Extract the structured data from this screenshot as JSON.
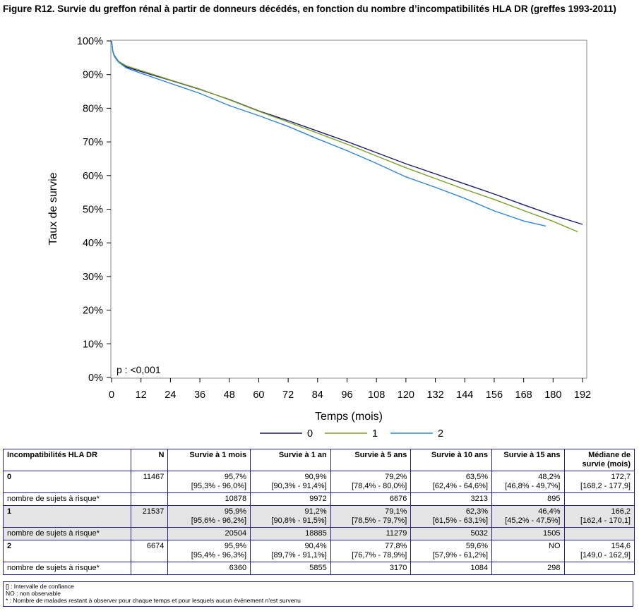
{
  "figure_title": "Figure R12. Survie du greffon rénal à partir de donneurs décédés, en fonction du nombre d’incompatibilités HLA DR (greffes 1993-2011)",
  "chart_data": {
    "type": "line",
    "title": "Figure R12. Survie du greffon rénal à partir de donneurs décédés, en fonction du nombre d’incompatibilités HLA DR (greffes 1993-2011)",
    "xlabel": "Temps (mois)",
    "ylabel": "Taux de survie",
    "xlim": [
      0,
      192
    ],
    "ylim": [
      0,
      100
    ],
    "x_ticks": [
      0,
      12,
      24,
      36,
      48,
      60,
      72,
      84,
      96,
      108,
      120,
      132,
      144,
      156,
      168,
      180,
      192
    ],
    "y_ticks": [
      "0%",
      "10%",
      "20%",
      "30%",
      "40%",
      "50%",
      "60%",
      "70%",
      "80%",
      "90%",
      "100%"
    ],
    "y_tick_values": [
      0,
      10,
      20,
      30,
      40,
      50,
      60,
      70,
      80,
      90,
      100
    ],
    "annotation": "p : <0,001",
    "grid": false,
    "legend_position": "bottom",
    "series": [
      {
        "name": "0",
        "color": "#1a1a6e",
        "x": [
          0,
          0.5,
          1,
          2,
          3,
          6,
          12,
          24,
          36,
          48,
          60,
          72,
          84,
          96,
          108,
          120,
          132,
          144,
          156,
          168,
          180,
          192
        ],
        "y": [
          100,
          97,
          95.7,
          94.5,
          93.6,
          92.3,
          90.9,
          88.3,
          85.6,
          82.6,
          79.2,
          76.3,
          73.2,
          70.1,
          66.8,
          63.5,
          60.5,
          57.5,
          54.5,
          51.3,
          48.2,
          45.5
        ]
      },
      {
        "name": "1",
        "color": "#7aa12a",
        "x": [
          0,
          0.5,
          1,
          2,
          3,
          6,
          12,
          24,
          36,
          48,
          60,
          72,
          84,
          96,
          108,
          120,
          132,
          144,
          156,
          168,
          180,
          190
        ],
        "y": [
          100,
          97,
          95.9,
          94.8,
          93.9,
          92.6,
          91.2,
          88.4,
          85.7,
          82.5,
          79.1,
          75.9,
          72.6,
          69.3,
          65.8,
          62.3,
          59.1,
          55.9,
          52.9,
          49.6,
          46.4,
          43.3
        ]
      },
      {
        "name": "2",
        "color": "#2f86d8",
        "x": [
          0,
          0.5,
          1,
          2,
          3,
          6,
          12,
          24,
          36,
          48,
          60,
          72,
          84,
          96,
          108,
          120,
          132,
          144,
          156,
          168,
          177
        ],
        "y": [
          100,
          97,
          95.9,
          94.6,
          93.6,
          92.0,
          90.4,
          87.4,
          84.4,
          80.8,
          77.8,
          74.6,
          70.9,
          67.4,
          63.6,
          59.6,
          56.5,
          53.2,
          49.5,
          46.5,
          45.0
        ]
      }
    ]
  },
  "table": {
    "headers": [
      "Incompatibilités HLA DR",
      "N",
      "Survie à 1 mois",
      "Survie à 1 an",
      "Survie à 5 ans",
      "Survie à 10 ans",
      "Survie à 15 ans",
      "Médiane de survie (mois)"
    ],
    "groups": [
      {
        "label": "0",
        "n": "11467",
        "values": [
          "95,7%",
          "90,9%",
          "79,2%",
          "63,5%",
          "48,2%",
          "172,7"
        ],
        "ci": [
          "[95,3% - 96,0%]",
          "[90,3% - 91,4%]",
          "[78,4% - 80,0%]",
          "[62,4% - 64,6%]",
          "[46,8% - 49,7%]",
          "[168,2 - 177,9]"
        ],
        "risk_label": "nombre de sujets à risque*",
        "risk": [
          "10878",
          "9972",
          "6676",
          "3213",
          "895",
          ""
        ]
      },
      {
        "label": "1",
        "n": "21537",
        "values": [
          "95,9%",
          "91,2%",
          "79,1%",
          "62,3%",
          "46,4%",
          "166,2"
        ],
        "ci": [
          "[95,6% - 96,2%]",
          "[90,8% - 91,5%]",
          "[78,5% - 79,7%]",
          "[61,5% - 63,1%]",
          "[45,2% - 47,5%]",
          "[162,4 - 170,1]"
        ],
        "risk_label": "nombre de sujets à risque*",
        "risk": [
          "20504",
          "18885",
          "11279",
          "5032",
          "1505",
          ""
        ]
      },
      {
        "label": "2",
        "n": "6674",
        "values": [
          "95,9%",
          "90,4%",
          "77,8%",
          "59,6%",
          "NO",
          "154,6"
        ],
        "ci": [
          "[95,4% - 96,3%]",
          "[89,7% - 91,1%]",
          "[76,7% - 78,9%]",
          "[57,9% - 61,2%]",
          "",
          "[149,0 - 162,9]"
        ],
        "risk_label": "nombre de sujets à risque*",
        "risk": [
          "6360",
          "5855",
          "3170",
          "1084",
          "298",
          ""
        ]
      }
    ]
  },
  "notes": [
    "[] : Intervalle de confiance",
    "NO : non observable",
    "* : Nombre de malades restant à observer pour chaque temps et pour lesquels aucun événement n'est survenu"
  ]
}
